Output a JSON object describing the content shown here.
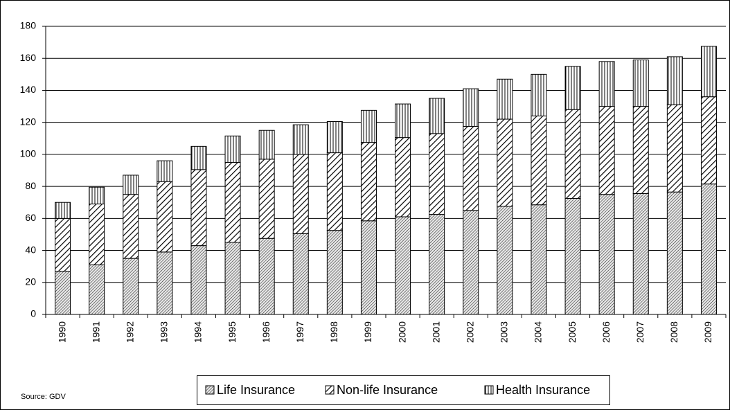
{
  "chart_data": {
    "type": "stacked-bar",
    "source": "Source: GDV",
    "categories": [
      "1990",
      "1991",
      "1992",
      "1993",
      "1994",
      "1995",
      "1996",
      "1997",
      "1998",
      "1999",
      "2000",
      "2001",
      "2002",
      "2003",
      "2004",
      "2005",
      "2006",
      "2007",
      "2008",
      "2009"
    ],
    "series": [
      {
        "name": "Life Insurance",
        "color": "#000000",
        "pattern": "fine-hatch",
        "values": [
          27,
          31,
          35,
          39,
          43,
          45,
          47.5,
          50.5,
          52.5,
          58.5,
          61,
          62.5,
          65,
          67.5,
          68.5,
          72.5,
          75,
          75.5,
          76.5,
          81.5
        ]
      },
      {
        "name": "Non-life Insurance",
        "color": "#000000",
        "pattern": "bold-hatch",
        "values": [
          33,
          38,
          40,
          44,
          47.5,
          50,
          49.5,
          49.5,
          48.5,
          49,
          49.5,
          50.5,
          52.5,
          54.5,
          55.5,
          55.5,
          55,
          54.5,
          54.5,
          54.5
        ]
      },
      {
        "name": "Health Insurance",
        "color": "#000000",
        "pattern": "vertical-lines",
        "values": [
          10,
          10.5,
          12,
          13,
          14.5,
          16.5,
          18,
          18.5,
          19.5,
          20,
          21,
          22,
          23.5,
          25,
          26,
          27,
          28,
          29,
          30,
          31.5
        ]
      }
    ],
    "ylim": [
      0,
      180
    ],
    "yticks": [
      0,
      20,
      40,
      60,
      80,
      100,
      120,
      140,
      160,
      180
    ],
    "grid": true
  }
}
